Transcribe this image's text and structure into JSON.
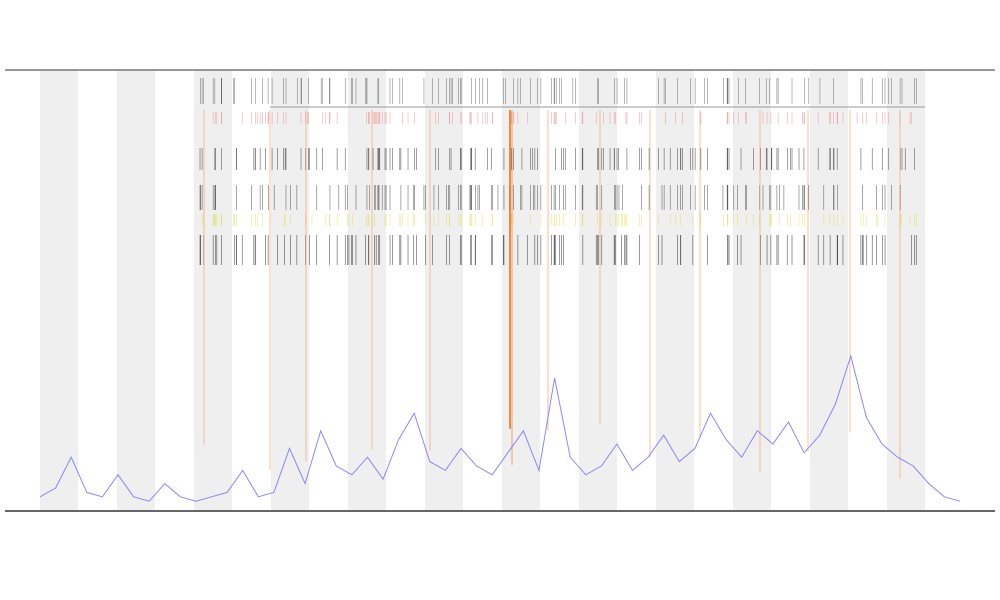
{
  "chart_data": {
    "type": "line",
    "ylim": [
      0,
      100
    ],
    "series": [
      {
        "color": "#6b6bff",
        "values": [
          3,
          5,
          12,
          4,
          3,
          8,
          3,
          2,
          6,
          3,
          2,
          3,
          4,
          9,
          3,
          4,
          14,
          6,
          18,
          10,
          8,
          12,
          7,
          16,
          22,
          11,
          9,
          14,
          10,
          8,
          13,
          18,
          9,
          30,
          12,
          8,
          10,
          15,
          9,
          12,
          17,
          11,
          14,
          22,
          16,
          12,
          18,
          15,
          20,
          13,
          17,
          24,
          35,
          21,
          15,
          12,
          10,
          6,
          3,
          2
        ]
      }
    ]
  }
}
